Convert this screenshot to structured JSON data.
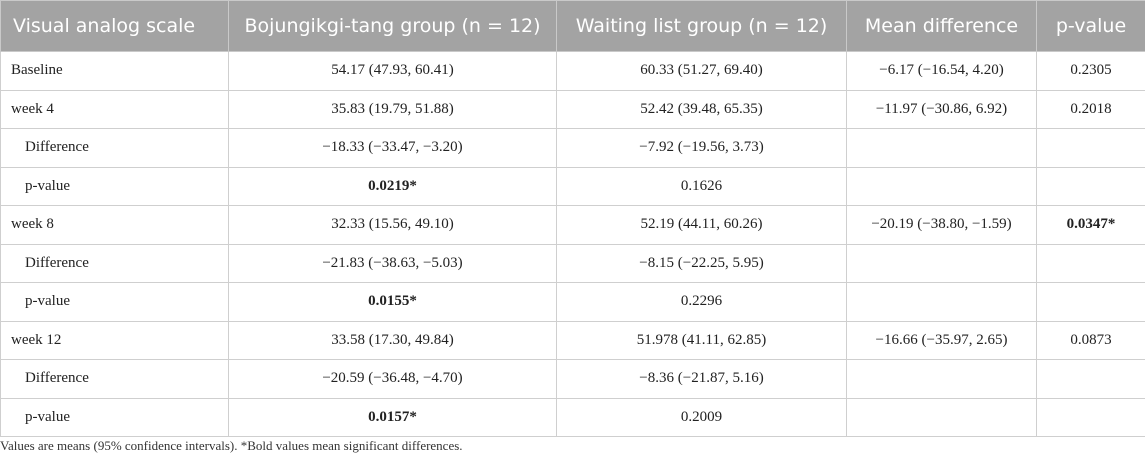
{
  "table": {
    "columns": [
      "Visual analog scale",
      "Bojungikgi-tang group (n = 12)",
      "Waiting list group (n = 12)",
      "Mean difference",
      "p-value"
    ],
    "rows": [
      {
        "cells": [
          "Baseline",
          "54.17 (47.93, 60.41)",
          "60.33 (51.27, 69.40)",
          "−6.17 (−16.54, 4.20)",
          "0.2305"
        ],
        "indent": false,
        "bold": []
      },
      {
        "cells": [
          "week 4",
          "35.83 (19.79, 51.88)",
          "52.42 (39.48, 65.35)",
          "−11.97 (−30.86, 6.92)",
          "0.2018"
        ],
        "indent": false,
        "bold": []
      },
      {
        "cells": [
          "Difference",
          "−18.33 (−33.47, −3.20)",
          "−7.92 (−19.56, 3.73)",
          "",
          ""
        ],
        "indent": true,
        "bold": []
      },
      {
        "cells": [
          "p-value",
          "0.0219*",
          "0.1626",
          "",
          ""
        ],
        "indent": true,
        "bold": [
          1
        ]
      },
      {
        "cells": [
          "week 8",
          "32.33 (15.56, 49.10)",
          "52.19 (44.11, 60.26)",
          "−20.19 (−38.80, −1.59)",
          "0.0347*"
        ],
        "indent": false,
        "bold": [
          4
        ]
      },
      {
        "cells": [
          "Difference",
          "−21.83 (−38.63, −5.03)",
          "−8.15 (−22.25, 5.95)",
          "",
          ""
        ],
        "indent": true,
        "bold": []
      },
      {
        "cells": [
          "p-value",
          "0.0155*",
          "0.2296",
          "",
          ""
        ],
        "indent": true,
        "bold": [
          1
        ]
      },
      {
        "cells": [
          "week 12",
          "33.58 (17.30, 49.84)",
          "51.978 (41.11, 62.85)",
          "−16.66 (−35.97, 2.65)",
          "0.0873"
        ],
        "indent": false,
        "bold": []
      },
      {
        "cells": [
          "Difference",
          "−20.59 (−36.48, −4.70)",
          "−8.36 (−21.87, 5.16)",
          "",
          ""
        ],
        "indent": true,
        "bold": []
      },
      {
        "cells": [
          "p-value",
          "0.0157*",
          "0.2009",
          "",
          ""
        ],
        "indent": true,
        "bold": [
          1
        ]
      }
    ],
    "footnote": "Values are means (95% confidence intervals). *Bold values mean significant differences."
  }
}
